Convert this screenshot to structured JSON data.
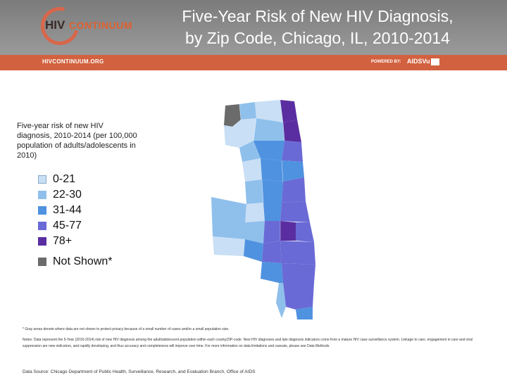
{
  "header": {
    "logo_hiv": "HIV",
    "logo_continuum": "CONTINUUM",
    "title_line1": "Five-Year Risk of New HIV Diagnosis,",
    "title_line2": "by Zip Code, Chicago, IL, 2010-2014"
  },
  "bar": {
    "site": "HIVCONTINUUM.ORG",
    "powered_by": "POWERED BY:",
    "brand": "AIDSVu"
  },
  "legend": {
    "title": "Five-year risk of  new HIV diagnosis, 2010-2014 (per 100,000 population of adults/adolescents in 2010)",
    "items": [
      {
        "label": "0-21",
        "color": "#c9dff5"
      },
      {
        "label": "22-30",
        "color": "#8fc0ec"
      },
      {
        "label": "31-44",
        "color": "#4f92e0"
      },
      {
        "label": "45-77",
        "color": "#6a6ad6"
      },
      {
        "label": "78+",
        "color": "#5a2ea0"
      }
    ],
    "not_shown": {
      "label": "Not Shown*",
      "color": "#6b6b6b"
    }
  },
  "notes": {
    "footnote": "* Gray areas denote where data are not shown to protect privacy because of a small number of cases and/or a small population size.",
    "note": "Notes: Data represent the 5-Year (2010-2014) risk of new HIV diagnosis among the adult/adolescent population within each county/ZIP-code. New HIV diagnoses and late diagnosis indicators come from a mature HIV case surveillance system. Linkage to care, engagement in care and viral suppression are new indicators, and rapidly developing, and thus accuracy and completeness will improve over time. For more information on data limitations and caveats, please see Data Methods.",
    "source_label": "Data Source:",
    "source": "Chicago Department of Public Health, Surveillance, Research, and Evaluation Branch, Office of AIDS"
  }
}
